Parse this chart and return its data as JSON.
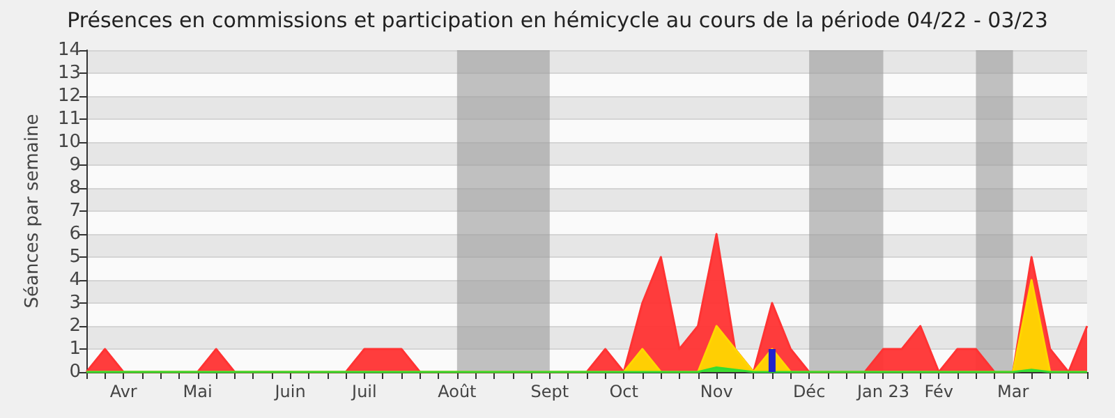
{
  "chart_data": {
    "type": "area",
    "title": "Présences en commissions et participation en hémicycle au cours de la période 04/22 - 03/23",
    "ylabel": "Séances par semaine",
    "categories": [
      null,
      null,
      "Avr",
      null,
      null,
      null,
      "Mai",
      null,
      null,
      null,
      null,
      "Juin",
      null,
      null,
      null,
      "Juil",
      null,
      null,
      null,
      null,
      "Août",
      null,
      null,
      null,
      null,
      "Sept",
      null,
      null,
      null,
      "Oct",
      null,
      null,
      null,
      null,
      "Nov",
      null,
      null,
      null,
      null,
      "Déc",
      null,
      null,
      null,
      "Jan 23",
      null,
      null,
      "Fév",
      null,
      null,
      null,
      "Mar",
      null,
      null,
      null,
      null
    ],
    "series": [
      {
        "color": "#ff3333",
        "values": [
          0,
          1,
          0,
          0,
          0,
          0,
          0,
          1,
          0,
          0,
          0,
          0,
          0,
          0,
          0,
          1,
          1,
          1,
          0,
          0,
          0,
          0,
          0,
          0,
          0,
          0,
          0,
          0,
          1,
          0,
          3,
          5,
          1,
          2,
          6,
          1,
          0,
          3,
          1,
          0,
          0,
          0,
          0,
          1,
          1,
          2,
          0,
          1,
          1,
          0,
          0,
          5,
          1,
          0,
          2
        ]
      },
      {
        "color": "#ffd700",
        "values": [
          0,
          0,
          0,
          0,
          0,
          0,
          0,
          0,
          0,
          0,
          0,
          0,
          0,
          0,
          0,
          0,
          0,
          0,
          0,
          0,
          0,
          0,
          0,
          0,
          0,
          0,
          0,
          0,
          0,
          0,
          1,
          0,
          0,
          0,
          2,
          1,
          0,
          1,
          0,
          0,
          0,
          0,
          0,
          0,
          0,
          0,
          0,
          0,
          0,
          0,
          0,
          4,
          0,
          0,
          0
        ]
      },
      {
        "color": "#33dd33",
        "values": [
          0,
          0,
          0,
          0,
          0,
          0,
          0,
          0,
          0,
          0,
          0,
          0,
          0,
          0,
          0,
          0,
          0,
          0,
          0,
          0,
          0,
          0,
          0,
          0,
          0,
          0,
          0,
          0,
          0,
          0,
          0,
          0,
          0,
          0,
          0.2,
          0.1,
          0,
          0,
          0,
          0,
          0,
          0,
          0,
          0,
          0,
          0,
          0,
          0,
          0,
          0,
          0,
          0.1,
          0,
          0,
          0
        ]
      },
      {
        "type": "bar",
        "color": "#2222cc",
        "values": [
          null,
          null,
          null,
          null,
          null,
          null,
          null,
          null,
          null,
          null,
          null,
          null,
          null,
          null,
          null,
          null,
          null,
          null,
          null,
          null,
          null,
          null,
          null,
          null,
          null,
          null,
          null,
          null,
          null,
          null,
          null,
          null,
          null,
          null,
          null,
          null,
          null,
          1,
          null,
          null,
          null,
          null,
          null,
          null,
          null,
          null,
          null,
          null,
          null,
          null,
          null,
          null,
          null,
          null,
          null
        ]
      }
    ],
    "ylim": [
      0,
      14
    ],
    "yticks": [
      0,
      1,
      2,
      3,
      4,
      5,
      6,
      7,
      8,
      9,
      10,
      11,
      12,
      13,
      14
    ],
    "grid": "y",
    "bands": [
      {
        "axis": "x",
        "from": "Août",
        "to": "Sept",
        "color": "#999999"
      },
      {
        "axis": "x",
        "from": "Déc",
        "to": "Jan 23",
        "color": "#999999"
      }
    ]
  }
}
